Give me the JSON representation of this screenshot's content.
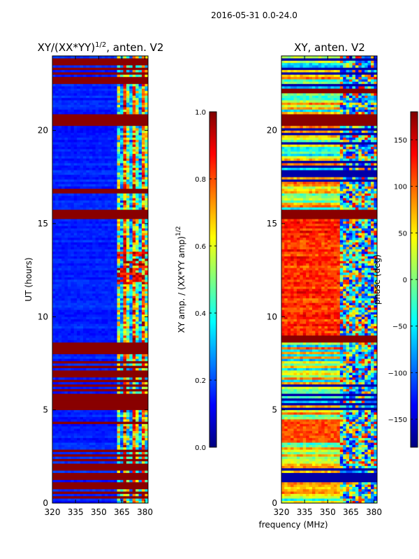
{
  "suptitle": "2016-05-31 0.0-24.0",
  "shared_xlabel": "frequency (MHz)",
  "colors": {
    "jet_stops": [
      "#00007f",
      "#0000ff",
      "#007fff",
      "#00ffff",
      "#7fff7f",
      "#ffff00",
      "#ff7f00",
      "#ff0000",
      "#7f0000"
    ]
  },
  "chart_data": [
    {
      "type": "heatmap",
      "title_main": "XY/(XX*YY)",
      "title_sup": "1/2",
      "title_tail": ", anten. V2",
      "xlabel": "",
      "ylabel": "UT (hours)",
      "xlim": [
        320,
        382
      ],
      "ylim": [
        0,
        24
      ],
      "xticks": [
        320,
        335,
        350,
        365,
        380
      ],
      "yticks": [
        0,
        5,
        10,
        15,
        20
      ],
      "colormap": "jet",
      "colorbar": {
        "label_main": "XY amp. / (XX*YY amp)",
        "label_sup": "1/2",
        "range": [
          0.0,
          1.0
        ],
        "ticks": [
          "0.0",
          "0.2",
          "0.4",
          "0.6",
          "0.8",
          "1.0"
        ],
        "tick_values": [
          0.0,
          0.2,
          0.4,
          0.6,
          0.8,
          1.0
        ]
      },
      "band_freq_start_mhz": 362,
      "flagged_hours": [
        [
          8.0,
          8.6
        ],
        [
          15.2,
          15.7
        ],
        [
          16.6,
          16.9
        ],
        [
          20.3,
          20.9
        ],
        [
          22.6,
          22.8
        ],
        [
          24.0,
          24.0
        ]
      ],
      "stripe_hours": [
        [
          0.2,
          2.9
        ],
        [
          4.2,
          4.5
        ],
        [
          5.0,
          7.6
        ],
        [
          21.2,
          21.3
        ],
        [
          22.4,
          24.0
        ]
      ]
    },
    {
      "type": "heatmap",
      "title_main": "XY, anten. V2",
      "xlabel": "frequency (MHz)",
      "ylabel": "",
      "xlim": [
        320,
        382
      ],
      "ylim": [
        0,
        24
      ],
      "xticks": [
        320,
        335,
        350,
        365,
        380
      ],
      "yticks": [
        0,
        5,
        10,
        15,
        20
      ],
      "colormap": "jet",
      "colorbar": {
        "label": "phase (deg)",
        "range": [
          -180,
          180
        ],
        "ticks": [
          "150",
          "100",
          "50",
          "0",
          "−50",
          "−100",
          "−150"
        ],
        "tick_values": [
          150,
          100,
          50,
          0,
          -50,
          -100,
          -150
        ]
      },
      "band_freq_start_mhz": 358,
      "flagged_hours": [
        [
          8.6,
          9.0
        ],
        [
          15.2,
          15.7
        ],
        [
          20.3,
          20.9
        ],
        [
          22.0,
          22.3
        ]
      ],
      "stripe_hours": [
        [
          0.2,
          2.9
        ],
        [
          5.0,
          7.6
        ],
        [
          17.2,
          20.3
        ],
        [
          22.4,
          24.0
        ]
      ]
    }
  ]
}
